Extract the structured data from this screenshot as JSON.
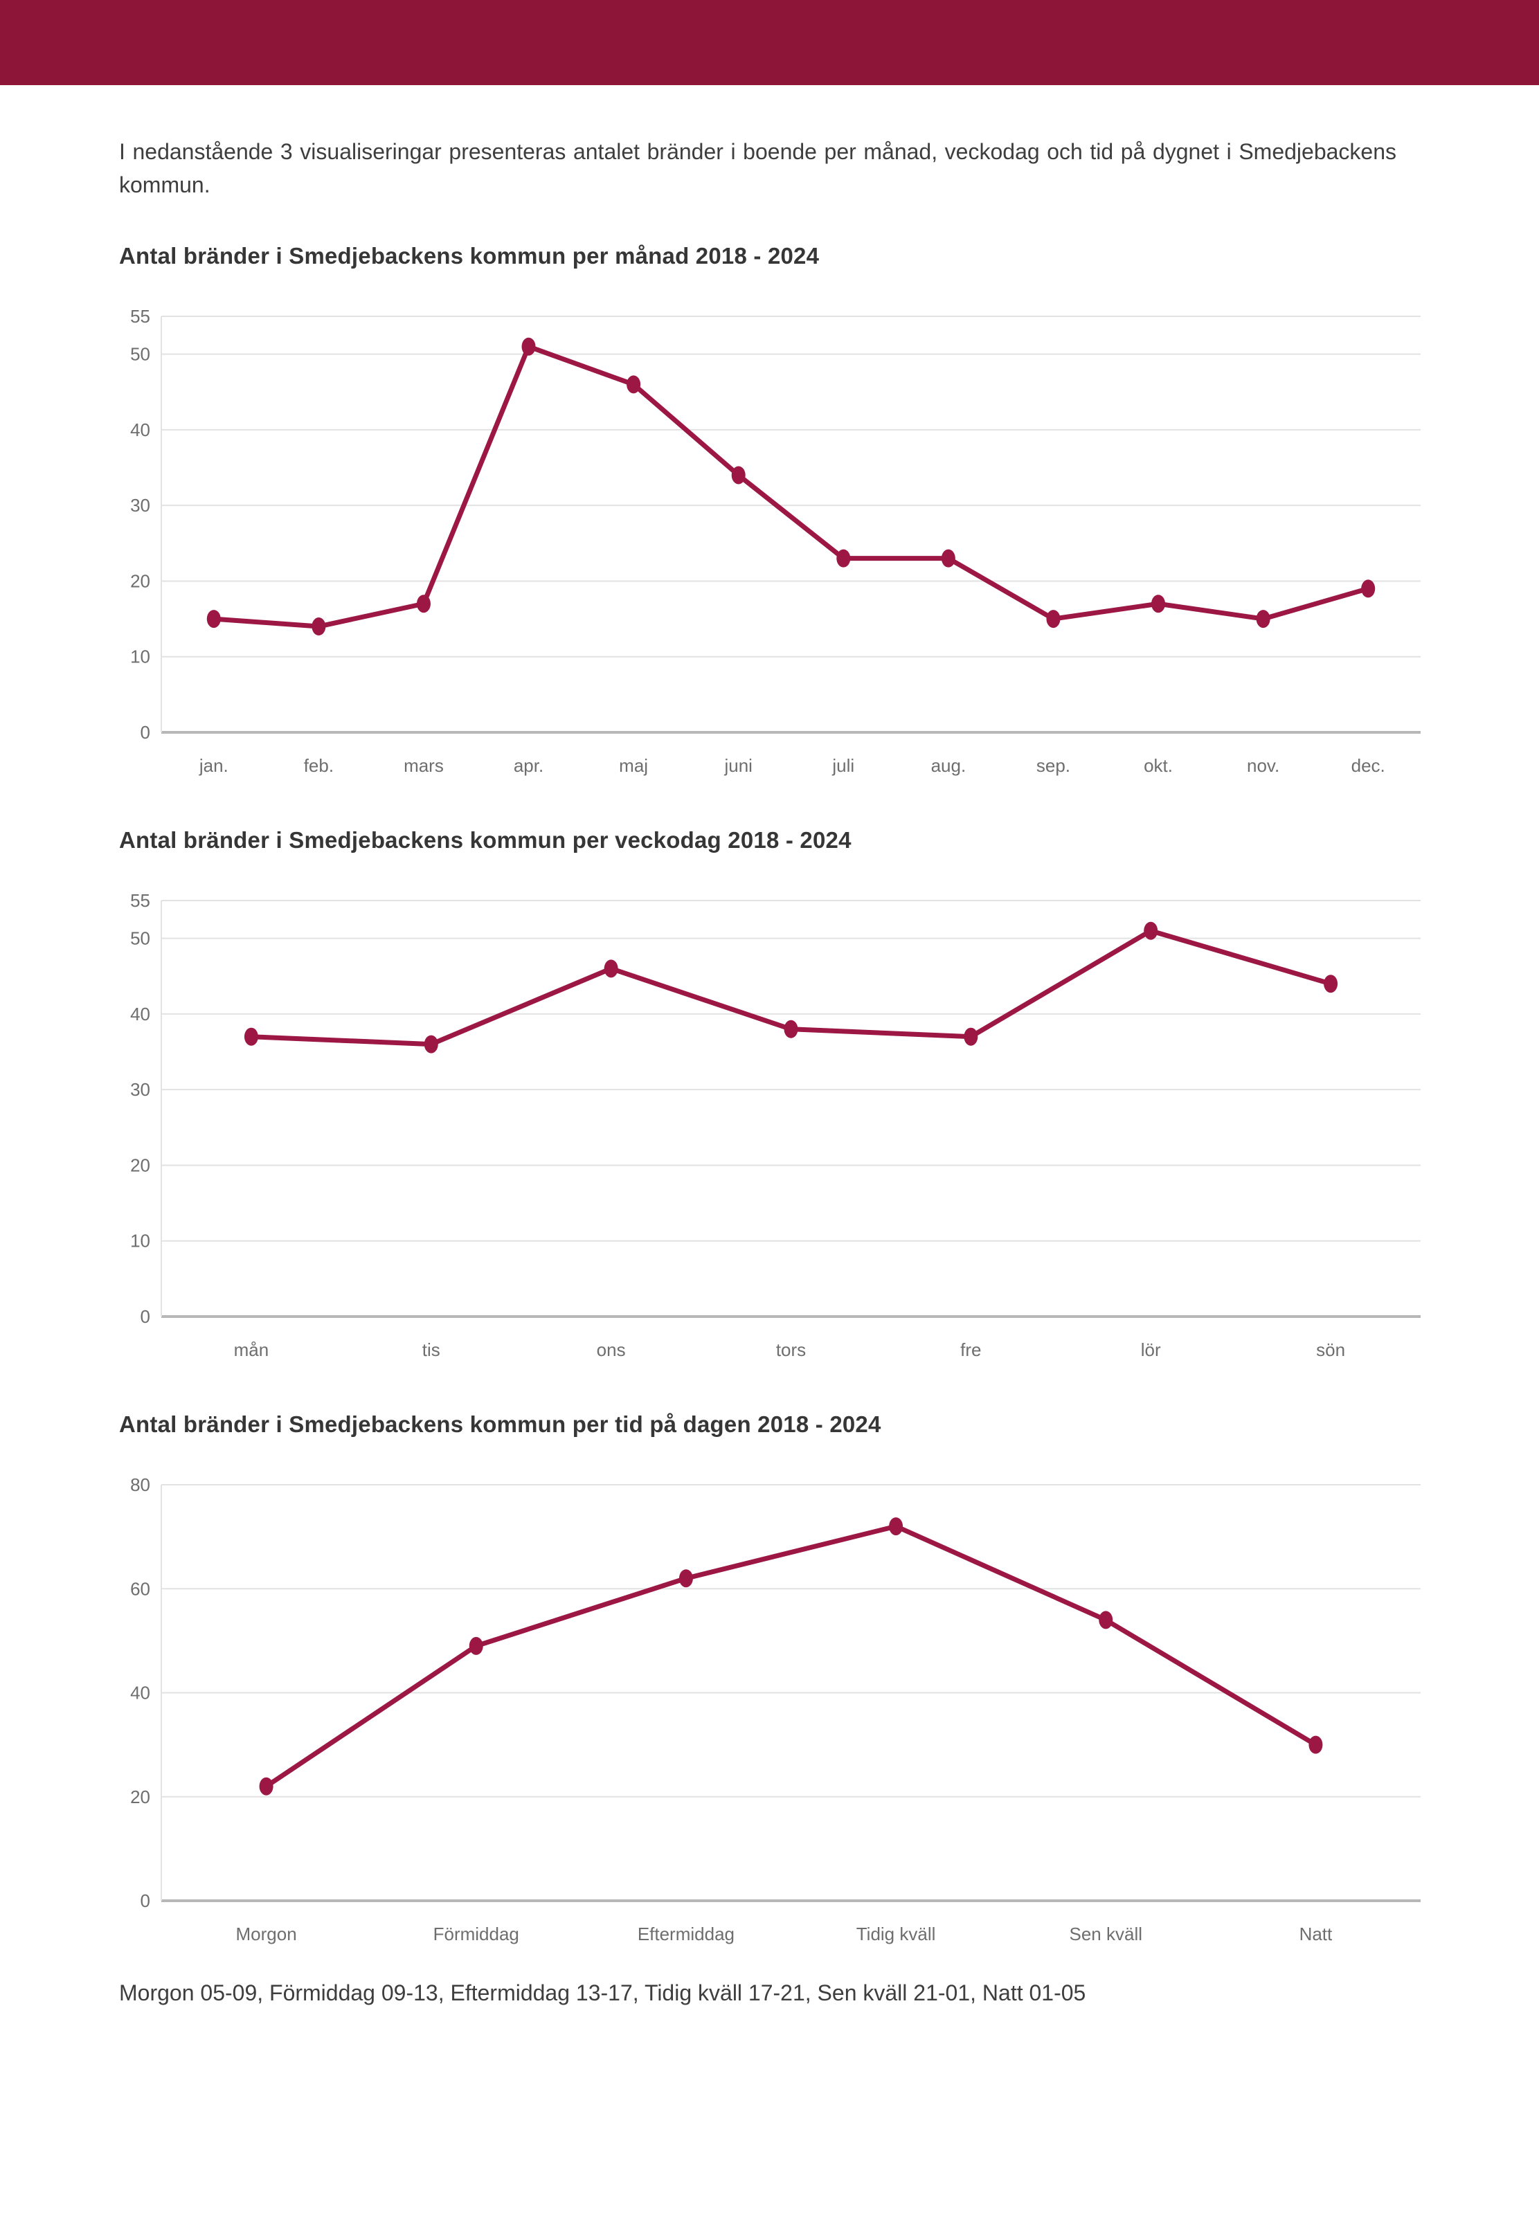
{
  "page": {
    "intro": "I nedanstående 3 visualiseringar presenteras antalet bränder i boende per månad, veckodag och tid på dygnet i Smedjebackens kommun.",
    "footnote": "Morgon 05-09, Förmiddag 09-13, Eftermiddag 13-17, Tidig kväll 17-21, Sen kväll 21-01, Natt 01-05"
  },
  "colors": {
    "header_bar": "#8c1538",
    "line": "#9c1743",
    "grid": "#e2e2e2",
    "zero_axis": "#b7b7b7",
    "tick_text": "#6e6e6e",
    "title_text": "#363636",
    "body_text": "#3e3e3e"
  },
  "chart_data": [
    {
      "type": "line",
      "title": "Antal bränder i Smedjebackens kommun per månad 2018 - 2024",
      "categories": [
        "jan.",
        "feb.",
        "mars",
        "apr.",
        "maj",
        "juni",
        "juli",
        "aug.",
        "sep.",
        "okt.",
        "nov.",
        "dec."
      ],
      "values": [
        15,
        14,
        17,
        51,
        46,
        34,
        23,
        23,
        15,
        17,
        15,
        19
      ],
      "xlabel": "",
      "ylabel": "",
      "ylim": [
        0,
        55
      ],
      "yticks": [
        55,
        50,
        40,
        30,
        20,
        10,
        0
      ],
      "grid": true,
      "legend": "none"
    },
    {
      "type": "line",
      "title": "Antal bränder i Smedjebackens kommun per veckodag 2018 - 2024",
      "categories": [
        "mån",
        "tis",
        "ons",
        "tors",
        "fre",
        "lör",
        "sön"
      ],
      "values": [
        37,
        36,
        46,
        38,
        37,
        51,
        44
      ],
      "xlabel": "",
      "ylabel": "",
      "ylim": [
        0,
        55
      ],
      "yticks": [
        55,
        50,
        40,
        30,
        20,
        10,
        0
      ],
      "grid": true,
      "legend": "none"
    },
    {
      "type": "line",
      "title": "Antal bränder i Smedjebackens kommun per tid på dagen 2018 - 2024",
      "categories": [
        "Morgon",
        "Förmiddag",
        "Eftermiddag",
        "Tidig kväll",
        "Sen kväll",
        "Natt"
      ],
      "values": [
        22,
        49,
        62,
        72,
        54,
        30
      ],
      "xlabel": "",
      "ylabel": "",
      "ylim": [
        0,
        80
      ],
      "yticks": [
        80,
        60,
        40,
        20,
        0
      ],
      "grid": true,
      "legend": "none"
    }
  ]
}
